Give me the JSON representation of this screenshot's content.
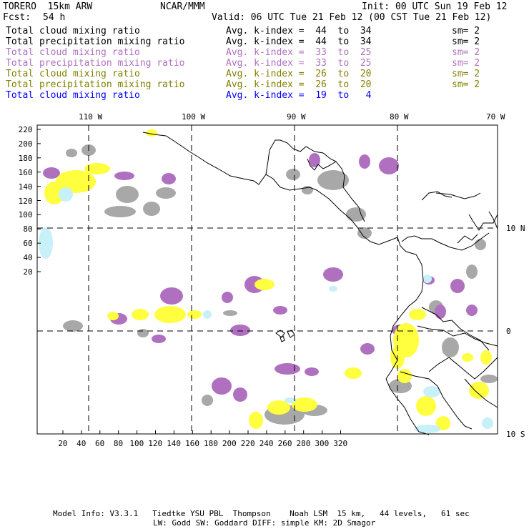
{
  "header": {
    "model": "TORERO  15km ARW",
    "org": "NCAR/MMM",
    "init": "Init: 00 UTC Sun 19 Feb 12",
    "fcst_label": "Fcst:",
    "fcst_value": "54 h",
    "valid": "Valid: 06 UTC Tue 21 Feb 12 (00 CST Tue 21 Feb 12)"
  },
  "legend": [
    {
      "field": "Total cloud mixing ratio",
      "kindex": "Avg. k-index =  44  to  34",
      "sm": "sm= 2",
      "color": "#000000"
    },
    {
      "field": "Total precipitation mixing ratio",
      "kindex": "Avg. k-index =  44  to  34",
      "sm": "sm= 2",
      "color": "#000000"
    },
    {
      "field": "Total cloud mixing ratio",
      "kindex": "Avg. k-index =  33  to  25",
      "sm": "sm= 2",
      "color": "#b070c0"
    },
    {
      "field": "Total precipitation mixing ratio",
      "kindex": "Avg. k-index =  33  to  25",
      "sm": "sm= 2",
      "color": "#b070c0"
    },
    {
      "field": "Total cloud mixing ratio",
      "kindex": "Avg. k-index =  26  to  20",
      "sm": "sm= 2",
      "color": "#808000"
    },
    {
      "field": "Total precipitation mixing ratio",
      "kindex": "Avg. k-index =  26  to  20",
      "sm": "sm= 2",
      "color": "#808000"
    },
    {
      "field": "Total cloud mixing ratio",
      "kindex": "Avg. k-index =  19  to   4",
      "sm": "",
      "color": "#0000ff"
    }
  ],
  "map": {
    "lon_labels": [
      "110 W",
      "100 W",
      "90 W",
      "80 W",
      "70 W"
    ],
    "lat_labels": [
      "10 N",
      "0",
      "10 S"
    ],
    "x_ticks": [
      "20",
      "40",
      "60",
      "80",
      "100",
      "120",
      "140",
      "160",
      "180",
      "200",
      "220",
      "240",
      "260",
      "280",
      "300",
      "320"
    ],
    "y_ticks": [
      "220",
      "200",
      "180",
      "160",
      "140",
      "120",
      "100",
      "80",
      "60",
      "40",
      "20"
    ],
    "fill_colors": {
      "gray": "#a8a8a8",
      "purple": "#b070c0",
      "yellow": "#ffff40",
      "lightblue": "#c8f0f8"
    }
  },
  "footer": {
    "line1": "Model Info: V3.3.1   Tiedtke YSU PBL  Thompson    Noah LSM  15 km,   44 levels,   61 sec",
    "line2": "LW: Godd SW: Goddard DIFF: simple KM: 2D Smagor"
  }
}
